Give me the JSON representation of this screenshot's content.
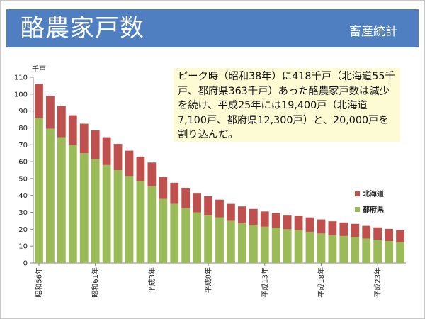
{
  "slide": {
    "title": "酪農家戸数",
    "subtitle": "畜産統計",
    "note": "ピーク時（昭和38年）に418千戸（北海道55千戸、都府県363千戸）あった酪農家戸数は減少を続け、平成25年には19,400戸（北海道7,100戸、都府県12,300戸）と、20,000戸を割り込んだ。"
  },
  "chart_data": {
    "type": "bar",
    "stacked": true,
    "ylabel": "千戸",
    "ylim": [
      0,
      110
    ],
    "yticks": [
      0,
      10,
      20,
      30,
      40,
      50,
      60,
      70,
      80,
      90,
      100,
      110
    ],
    "grid": false,
    "legend_position": "right",
    "categories": [
      "昭和56年",
      "昭和57年",
      "昭和58年",
      "昭和59年",
      "昭和60年",
      "昭和61年",
      "昭和62年",
      "昭和63年",
      "平成元年",
      "平成2年",
      "平成3年",
      "平成4年",
      "平成5年",
      "平成6年",
      "平成7年",
      "平成8年",
      "平成9年",
      "平成10年",
      "平成11年",
      "平成12年",
      "平成13年",
      "平成14年",
      "平成15年",
      "平成16年",
      "平成17年",
      "平成18年",
      "平成19年",
      "平成20年",
      "平成21年",
      "平成22年",
      "平成23年",
      "平成24年",
      "平成25年"
    ],
    "xtick_labels": [
      "昭和56年",
      "",
      "",
      "",
      "",
      "昭和61年",
      "",
      "",
      "",
      "",
      "平成3年",
      "",
      "",
      "",
      "",
      "平成8年",
      "",
      "",
      "",
      "",
      "平成13年",
      "",
      "",
      "",
      "",
      "平成18年",
      "",
      "",
      "",
      "",
      "平成23年",
      "",
      ""
    ],
    "series": [
      {
        "name": "都府県",
        "color": "#9bbb59",
        "values": [
          86,
          79.5,
          74.5,
          70,
          65,
          61.5,
          58,
          55,
          51.5,
          48.5,
          45.5,
          38,
          35,
          32.5,
          30,
          28.5,
          27,
          25,
          23.5,
          22.5,
          21.5,
          21,
          20,
          19.5,
          18.5,
          17.5,
          16.5,
          16,
          15.5,
          14.5,
          13.8,
          13,
          12.3
        ]
      },
      {
        "name": "北海道",
        "color": "#c0504d",
        "values": [
          20,
          19.5,
          18.5,
          17.5,
          17.5,
          17,
          16.5,
          15.5,
          15,
          14.5,
          14,
          13,
          12.5,
          12,
          11.5,
          11,
          10.5,
          10,
          10,
          9.5,
          9,
          8.5,
          8.5,
          8.5,
          8.5,
          8.3,
          8.2,
          8,
          7.7,
          7.5,
          7.3,
          7.2,
          7.1
        ]
      }
    ]
  }
}
